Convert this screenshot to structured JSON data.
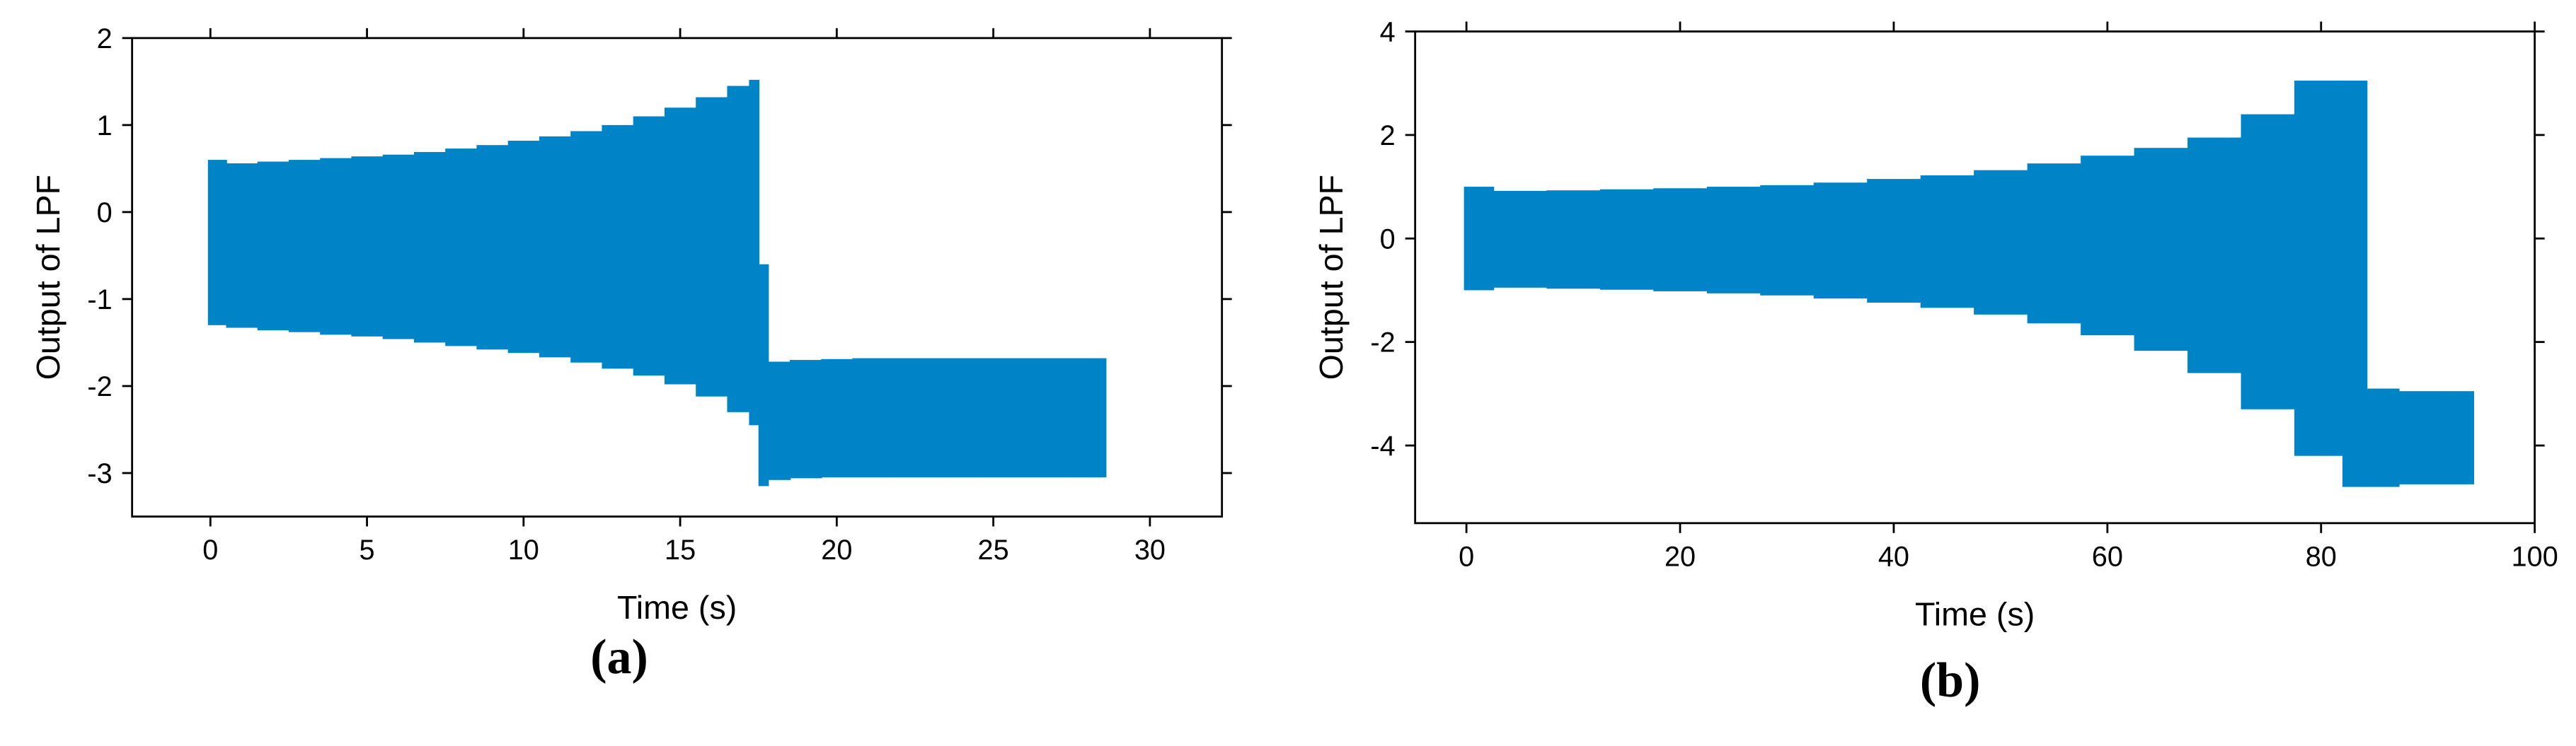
{
  "chart_data": [
    {
      "type": "range",
      "caption": "(a)",
      "xlabel": "Time (s)",
      "ylabel": "Output of LPF",
      "color": "#0084c8",
      "x": [
        0,
        1,
        2,
        3,
        4,
        5,
        6,
        7,
        8,
        9,
        10,
        11,
        12,
        13,
        14,
        15,
        16,
        17,
        17.4,
        17.6,
        18,
        19,
        20,
        21,
        22,
        23,
        24,
        25,
        26,
        27,
        28,
        28.5
      ],
      "high": [
        0.6,
        0.56,
        0.58,
        0.6,
        0.62,
        0.64,
        0.66,
        0.69,
        0.73,
        0.77,
        0.82,
        0.87,
        0.93,
        1.0,
        1.1,
        1.2,
        1.32,
        1.45,
        1.52,
        -0.6,
        -1.72,
        -1.7,
        -1.69,
        -1.68,
        -1.68,
        -1.68,
        -1.68,
        -1.68,
        -1.68,
        -1.68,
        -1.68,
        -1.68
      ],
      "low": [
        -1.3,
        -1.33,
        -1.36,
        -1.38,
        -1.41,
        -1.43,
        -1.46,
        -1.5,
        -1.54,
        -1.58,
        -1.62,
        -1.67,
        -1.73,
        -1.8,
        -1.88,
        -1.98,
        -2.12,
        -2.3,
        -2.45,
        -3.15,
        -3.08,
        -3.06,
        -3.05,
        -3.05,
        -3.05,
        -3.05,
        -3.05,
        -3.05,
        -3.05,
        -3.05,
        -3.05,
        -3.05
      ],
      "xlim": [
        -2.5,
        32.3
      ],
      "ylim": [
        -3.5,
        2
      ],
      "xticks": [
        0,
        5,
        10,
        15,
        20,
        25,
        30
      ],
      "yticks": [
        -3,
        -2,
        -1,
        0,
        1,
        2
      ]
    },
    {
      "type": "range",
      "caption": "(b)",
      "xlabel": "Time (s)",
      "ylabel": "Output of LPF",
      "color": "#0084c8",
      "x": [
        0,
        5,
        10,
        15,
        20,
        25,
        30,
        35,
        40,
        45,
        50,
        55,
        60,
        65,
        70,
        75,
        80,
        84,
        84.5,
        90,
        94
      ],
      "high": [
        1.0,
        0.92,
        0.93,
        0.95,
        0.97,
        1.0,
        1.03,
        1.08,
        1.15,
        1.22,
        1.32,
        1.45,
        1.6,
        1.75,
        1.95,
        2.4,
        3.05,
        3.05,
        -2.9,
        -2.95,
        -2.95
      ],
      "low": [
        -1.0,
        -0.95,
        -0.97,
        -0.99,
        -1.02,
        -1.06,
        -1.1,
        -1.16,
        -1.24,
        -1.34,
        -1.47,
        -1.64,
        -1.87,
        -2.17,
        -2.6,
        -3.3,
        -4.2,
        -4.8,
        -4.8,
        -4.75,
        -4.75
      ],
      "xlim": [
        -4.8,
        100
      ],
      "ylim": [
        -5.5,
        4
      ],
      "xticks": [
        0,
        20,
        40,
        60,
        80,
        100
      ],
      "yticks": [
        -4,
        -2,
        0,
        2,
        4
      ]
    }
  ]
}
